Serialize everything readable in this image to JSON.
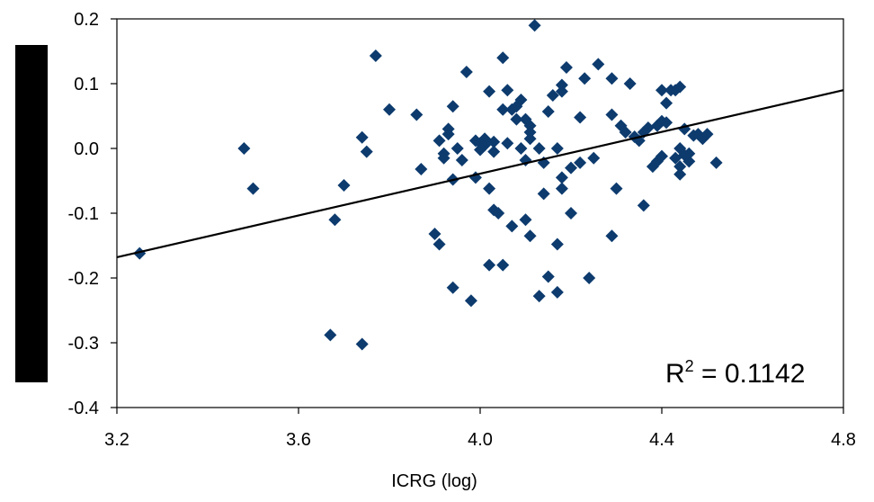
{
  "chart_data": {
    "type": "scatter",
    "title": "",
    "xlabel": "ICRG (log)",
    "ylabel": "",
    "xlim": [
      3.2,
      4.8
    ],
    "ylim": [
      -0.4,
      0.2
    ],
    "x_ticks": [
      3.2,
      3.6,
      4.0,
      4.4,
      4.8
    ],
    "x_tick_labels": [
      "3.2",
      "3.6",
      "4.0",
      "4.4",
      "4.8"
    ],
    "y_ticks": [
      0.2,
      0.1,
      0.0,
      -0.1,
      -0.2,
      -0.3,
      -0.4
    ],
    "y_tick_labels": [
      "0.2",
      "0.1",
      "0.0",
      "-0.1",
      "-0.2",
      "-0.3",
      "-0.4"
    ],
    "grid": false,
    "legend": "none",
    "marker": "diamond",
    "colors": {
      "points": "#0d3b6e",
      "trendline": "#000000",
      "ylabel_redaction": "#000000"
    },
    "annotation": {
      "r2_prefix": "R",
      "r2_sup": "2",
      "r2_value": " = 0.1142"
    },
    "trendline": {
      "x": [
        3.2,
        4.8
      ],
      "y": [
        -0.168,
        0.09
      ]
    },
    "points": [
      [
        3.25,
        -0.162
      ],
      [
        3.48,
        0.0
      ],
      [
        3.5,
        -0.062
      ],
      [
        3.67,
        -0.288
      ],
      [
        3.68,
        -0.11
      ],
      [
        3.7,
        -0.057
      ],
      [
        3.74,
        -0.302
      ],
      [
        3.74,
        0.017
      ],
      [
        3.75,
        -0.005
      ],
      [
        3.77,
        0.143
      ],
      [
        3.8,
        0.06
      ],
      [
        3.86,
        0.052
      ],
      [
        3.87,
        -0.032
      ],
      [
        3.9,
        -0.132
      ],
      [
        3.91,
        -0.148
      ],
      [
        3.91,
        0.012
      ],
      [
        3.92,
        -0.008
      ],
      [
        3.92,
        -0.015
      ],
      [
        3.93,
        0.022
      ],
      [
        3.93,
        0.03
      ],
      [
        3.94,
        -0.215
      ],
      [
        3.94,
        -0.048
      ],
      [
        3.94,
        0.065
      ],
      [
        3.95,
        0.0
      ],
      [
        3.96,
        -0.018
      ],
      [
        3.97,
        0.118
      ],
      [
        3.98,
        -0.235
      ],
      [
        3.99,
        -0.045
      ],
      [
        3.99,
        0.012
      ],
      [
        4.0,
        0.008
      ],
      [
        4.0,
        -0.002
      ],
      [
        4.01,
        0.015
      ],
      [
        4.01,
        0.005
      ],
      [
        4.02,
        0.088
      ],
      [
        4.02,
        -0.062
      ],
      [
        4.02,
        -0.18
      ],
      [
        4.03,
        0.01
      ],
      [
        4.03,
        -0.005
      ],
      [
        4.03,
        -0.095
      ],
      [
        4.04,
        -0.1
      ],
      [
        4.05,
        0.14
      ],
      [
        4.05,
        -0.18
      ],
      [
        4.05,
        0.06
      ],
      [
        4.06,
        0.008
      ],
      [
        4.06,
        0.09
      ],
      [
        4.07,
        0.06
      ],
      [
        4.07,
        -0.12
      ],
      [
        4.08,
        0.045
      ],
      [
        4.08,
        0.065
      ],
      [
        4.09,
        0.075
      ],
      [
        4.09,
        0.0
      ],
      [
        4.1,
        -0.11
      ],
      [
        4.1,
        0.045
      ],
      [
        4.1,
        -0.018
      ],
      [
        4.11,
        0.035
      ],
      [
        4.11,
        0.025
      ],
      [
        4.11,
        0.015
      ],
      [
        4.11,
        -0.135
      ],
      [
        4.12,
        0.19
      ],
      [
        4.13,
        0.0
      ],
      [
        4.13,
        -0.228
      ],
      [
        4.14,
        -0.022
      ],
      [
        4.14,
        -0.07
      ],
      [
        4.15,
        -0.198
      ],
      [
        4.15,
        0.057
      ],
      [
        4.16,
        0.082
      ],
      [
        4.17,
        -0.148
      ],
      [
        4.17,
        -0.222
      ],
      [
        4.17,
        0.0
      ],
      [
        4.18,
        0.088
      ],
      [
        4.18,
        0.098
      ],
      [
        4.18,
        -0.062
      ],
      [
        4.18,
        -0.045
      ],
      [
        4.19,
        0.125
      ],
      [
        4.2,
        -0.1
      ],
      [
        4.2,
        -0.03
      ],
      [
        4.22,
        0.048
      ],
      [
        4.22,
        -0.022
      ],
      [
        4.23,
        0.108
      ],
      [
        4.24,
        -0.2
      ],
      [
        4.25,
        -0.015
      ],
      [
        4.26,
        0.13
      ],
      [
        4.29,
        0.108
      ],
      [
        4.29,
        -0.135
      ],
      [
        4.29,
        0.052
      ],
      [
        4.3,
        -0.062
      ],
      [
        4.31,
        0.035
      ],
      [
        4.32,
        0.025
      ],
      [
        4.33,
        0.1
      ],
      [
        4.34,
        0.018
      ],
      [
        4.35,
        0.012
      ],
      [
        4.36,
        -0.088
      ],
      [
        4.36,
        0.025
      ],
      [
        4.37,
        0.032
      ],
      [
        4.38,
        -0.028
      ],
      [
        4.39,
        -0.02
      ],
      [
        4.39,
        0.035
      ],
      [
        4.4,
        0.09
      ],
      [
        4.4,
        -0.012
      ],
      [
        4.4,
        0.042
      ],
      [
        4.41,
        0.07
      ],
      [
        4.41,
        0.04
      ],
      [
        4.42,
        0.09
      ],
      [
        4.43,
        0.09
      ],
      [
        4.43,
        -0.015
      ],
      [
        4.44,
        0.095
      ],
      [
        4.44,
        0.0
      ],
      [
        4.44,
        -0.028
      ],
      [
        4.44,
        -0.04
      ],
      [
        4.45,
        0.03
      ],
      [
        4.45,
        -0.01
      ],
      [
        4.46,
        -0.02
      ],
      [
        4.46,
        -0.008
      ],
      [
        4.47,
        0.02
      ],
      [
        4.48,
        0.022
      ],
      [
        4.49,
        0.015
      ],
      [
        4.5,
        0.022
      ],
      [
        4.52,
        -0.022
      ]
    ]
  }
}
